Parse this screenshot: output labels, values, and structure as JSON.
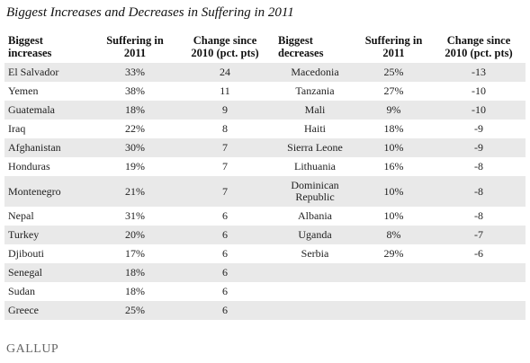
{
  "title": "Biggest Increases and Decreases in Suffering in 2011",
  "headers": {
    "increases": "Biggest increases",
    "suffering_inc": "Suffering in 2011",
    "change_inc": "Change since 2010 (pct. pts)",
    "decreases": "Biggest decreases",
    "suffering_dec": "Suffering in 2011",
    "change_dec": "Change since 2010 (pct. pts)"
  },
  "rows": [
    {
      "inc_country": "El Salvador",
      "inc_suffering": "33%",
      "inc_change": "24",
      "dec_country": "Macedonia",
      "dec_suffering": "25%",
      "dec_change": "-13"
    },
    {
      "inc_country": "Yemen",
      "inc_suffering": "38%",
      "inc_change": "11",
      "dec_country": "Tanzania",
      "dec_suffering": "27%",
      "dec_change": "-10"
    },
    {
      "inc_country": "Guatemala",
      "inc_suffering": "18%",
      "inc_change": "9",
      "dec_country": "Mali",
      "dec_suffering": "9%",
      "dec_change": "-10"
    },
    {
      "inc_country": "Iraq",
      "inc_suffering": "22%",
      "inc_change": "8",
      "dec_country": "Haiti",
      "dec_suffering": "18%",
      "dec_change": "-9"
    },
    {
      "inc_country": "Afghanistan",
      "inc_suffering": "30%",
      "inc_change": "7",
      "dec_country": "Sierra Leone",
      "dec_suffering": "10%",
      "dec_change": "-9"
    },
    {
      "inc_country": "Honduras",
      "inc_suffering": "19%",
      "inc_change": "7",
      "dec_country": "Lithuania",
      "dec_suffering": "16%",
      "dec_change": "-8"
    },
    {
      "inc_country": "Montenegro",
      "inc_suffering": "21%",
      "inc_change": "7",
      "dec_country": "Dominican Republic",
      "dec_suffering": "10%",
      "dec_change": "-8"
    },
    {
      "inc_country": "Nepal",
      "inc_suffering": "31%",
      "inc_change": "6",
      "dec_country": "Albania",
      "dec_suffering": "10%",
      "dec_change": "-8"
    },
    {
      "inc_country": "Turkey",
      "inc_suffering": "20%",
      "inc_change": "6",
      "dec_country": "Uganda",
      "dec_suffering": "8%",
      "dec_change": "-7"
    },
    {
      "inc_country": "Djibouti",
      "inc_suffering": "17%",
      "inc_change": "6",
      "dec_country": "Serbia",
      "dec_suffering": "29%",
      "dec_change": "-6"
    },
    {
      "inc_country": "Senegal",
      "inc_suffering": "18%",
      "inc_change": "6",
      "dec_country": "",
      "dec_suffering": "",
      "dec_change": ""
    },
    {
      "inc_country": "Sudan",
      "inc_suffering": "18%",
      "inc_change": "6",
      "dec_country": "",
      "dec_suffering": "",
      "dec_change": ""
    },
    {
      "inc_country": "Greece",
      "inc_suffering": "25%",
      "inc_change": "6",
      "dec_country": "",
      "dec_suffering": "",
      "dec_change": ""
    }
  ],
  "footer": {
    "logo": "GALLUP"
  }
}
